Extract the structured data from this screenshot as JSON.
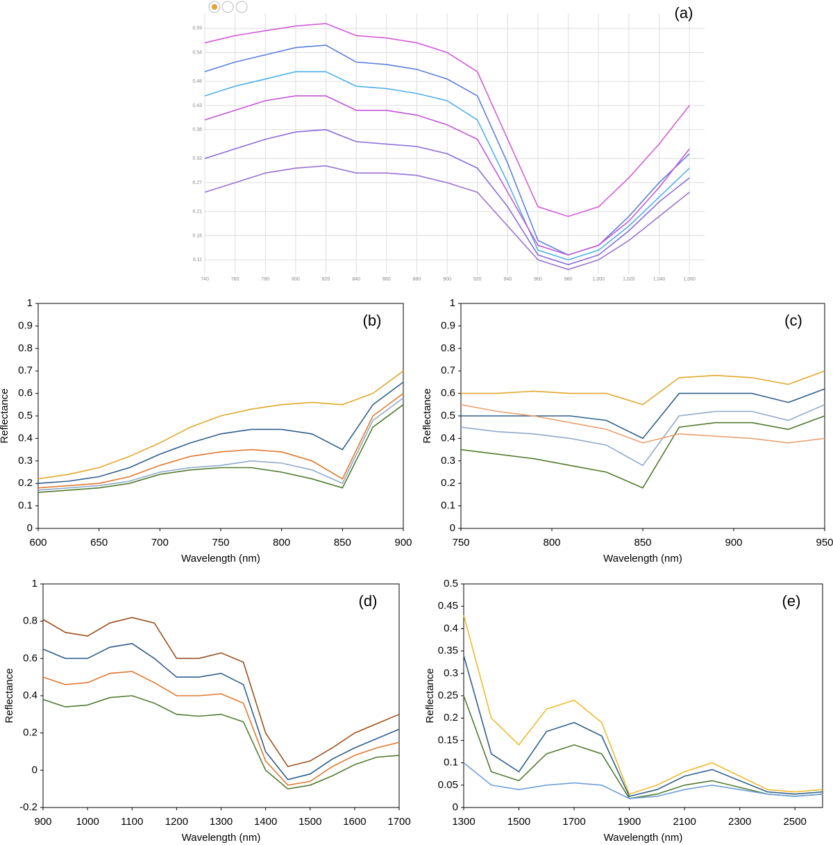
{
  "chart_data": [
    {
      "type": "line",
      "title": "(a)",
      "grid": true,
      "x": [
        740,
        760,
        780,
        800,
        820,
        840,
        860,
        880,
        900,
        920,
        940,
        960,
        980,
        1000,
        1020,
        1040,
        1060
      ],
      "xlim": [
        740,
        1070
      ],
      "ylim": [
        0.08,
        0.62
      ],
      "xticks": [
        740,
        760,
        780,
        800,
        820,
        840,
        860,
        880,
        900,
        920,
        940,
        960,
        980,
        {
          "value": 1000,
          "label": "1,000"
        },
        {
          "value": 1020,
          "label": "1,020"
        },
        {
          "value": 1040,
          "label": "1,040"
        },
        {
          "value": 1060,
          "label": "1,060"
        }
      ],
      "yticks": [
        0.11,
        0.16,
        0.21,
        0.27,
        0.32,
        0.38,
        0.43,
        0.48,
        0.54,
        0.59
      ],
      "series": [
        {
          "color": "#d25ad8",
          "values": [
            0.56,
            0.575,
            0.585,
            0.595,
            0.6,
            0.575,
            0.57,
            0.56,
            0.54,
            0.5,
            0.36,
            0.22,
            0.2,
            0.22,
            0.28,
            0.35,
            0.43
          ]
        },
        {
          "color": "#5b7fdc",
          "values": [
            0.5,
            0.52,
            0.535,
            0.55,
            0.555,
            0.52,
            0.515,
            0.505,
            0.485,
            0.45,
            0.31,
            0.15,
            0.12,
            0.14,
            0.2,
            0.27,
            0.33
          ]
        },
        {
          "color": "#4fb0e8",
          "values": [
            0.45,
            0.47,
            0.485,
            0.5,
            0.5,
            0.47,
            0.465,
            0.455,
            0.44,
            0.4,
            0.27,
            0.13,
            0.11,
            0.13,
            0.18,
            0.24,
            0.3
          ]
        },
        {
          "color": "#c254d6",
          "values": [
            0.4,
            0.42,
            0.44,
            0.45,
            0.45,
            0.42,
            0.42,
            0.41,
            0.39,
            0.36,
            0.25,
            0.14,
            0.12,
            0.14,
            0.19,
            0.26,
            0.34
          ]
        },
        {
          "color": "#8a6ad8",
          "values": [
            0.32,
            0.34,
            0.36,
            0.375,
            0.38,
            0.355,
            0.35,
            0.345,
            0.33,
            0.3,
            0.22,
            0.12,
            0.1,
            0.12,
            0.17,
            0.23,
            0.28
          ]
        },
        {
          "color": "#9a70d0",
          "values": [
            0.25,
            0.27,
            0.29,
            0.3,
            0.305,
            0.29,
            0.29,
            0.285,
            0.27,
            0.25,
            0.18,
            0.11,
            0.09,
            0.11,
            0.15,
            0.2,
            0.25
          ]
        }
      ]
    },
    {
      "type": "line",
      "title": "(b)",
      "grid": false,
      "x_label": "Wavelength (nm)",
      "y_label": "Reflectance",
      "x": [
        600,
        625,
        650,
        675,
        700,
        725,
        750,
        775,
        800,
        825,
        850,
        875,
        900
      ],
      "xlim": [
        600,
        900
      ],
      "ylim": [
        0,
        1
      ],
      "xticks": [
        600,
        650,
        700,
        750,
        800,
        850,
        900
      ],
      "yticks": [
        0,
        0.1,
        0.2,
        0.3,
        0.4,
        0.5,
        0.6,
        0.7,
        0.8,
        0.9,
        1
      ],
      "series": [
        {
          "color": "#e0a72a",
          "values": [
            0.22,
            0.24,
            0.27,
            0.32,
            0.38,
            0.45,
            0.5,
            0.53,
            0.55,
            0.56,
            0.55,
            0.6,
            0.7
          ]
        },
        {
          "color": "#2f5f8a",
          "values": [
            0.2,
            0.21,
            0.23,
            0.27,
            0.33,
            0.38,
            0.42,
            0.44,
            0.44,
            0.42,
            0.35,
            0.55,
            0.65
          ]
        },
        {
          "color": "#e0782e",
          "values": [
            0.18,
            0.19,
            0.2,
            0.23,
            0.28,
            0.32,
            0.34,
            0.35,
            0.34,
            0.3,
            0.22,
            0.5,
            0.6
          ]
        },
        {
          "color": "#4f7a2e",
          "values": [
            0.16,
            0.17,
            0.18,
            0.2,
            0.24,
            0.26,
            0.27,
            0.27,
            0.25,
            0.22,
            0.18,
            0.45,
            0.55
          ]
        },
        {
          "color": "#8fa9c9",
          "values": [
            0.17,
            0.18,
            0.19,
            0.21,
            0.25,
            0.27,
            0.28,
            0.3,
            0.29,
            0.26,
            0.2,
            0.48,
            0.58
          ]
        }
      ]
    },
    {
      "type": "line",
      "title": "(c)",
      "grid": false,
      "x_label": "Wavelength (nm)",
      "y_label": "Reflectance",
      "x": [
        750,
        770,
        790,
        810,
        830,
        850,
        870,
        890,
        910,
        930,
        950
      ],
      "xlim": [
        750,
        950
      ],
      "ylim": [
        0,
        1
      ],
      "xticks": [
        750,
        800,
        850,
        900,
        950
      ],
      "yticks": [
        0,
        0.1,
        0.2,
        0.3,
        0.4,
        0.5,
        0.6,
        0.7,
        0.8,
        0.9,
        1
      ],
      "series": [
        {
          "color": "#e0a72a",
          "values": [
            0.6,
            0.6,
            0.61,
            0.6,
            0.6,
            0.55,
            0.67,
            0.68,
            0.67,
            0.64,
            0.7
          ]
        },
        {
          "color": "#2f5f8a",
          "values": [
            0.5,
            0.5,
            0.5,
            0.5,
            0.48,
            0.4,
            0.6,
            0.6,
            0.6,
            0.56,
            0.62
          ]
        },
        {
          "color": "#8fa9c9",
          "values": [
            0.45,
            0.43,
            0.42,
            0.4,
            0.37,
            0.28,
            0.5,
            0.52,
            0.52,
            0.48,
            0.55
          ]
        },
        {
          "color": "#4f7a2e",
          "values": [
            0.35,
            0.33,
            0.31,
            0.28,
            0.25,
            0.18,
            0.45,
            0.47,
            0.47,
            0.44,
            0.5
          ]
        },
        {
          "color": "#e8a070",
          "values": [
            0.55,
            0.52,
            0.5,
            0.47,
            0.44,
            0.38,
            0.42,
            0.41,
            0.4,
            0.38,
            0.4
          ]
        }
      ]
    },
    {
      "type": "line",
      "title": "(d)",
      "grid": false,
      "x_label": "Wavelength (nm)",
      "y_label": "Reflectance",
      "x": [
        900,
        950,
        1000,
        1050,
        1100,
        1150,
        1200,
        1250,
        1300,
        1350,
        1400,
        1450,
        1500,
        1550,
        1600,
        1650,
        1700
      ],
      "xlim": [
        900,
        1700
      ],
      "ylim": [
        -0.2,
        1
      ],
      "xticks": [
        900,
        1000,
        1100,
        1200,
        1300,
        1400,
        1500,
        1600,
        1700
      ],
      "yticks": [
        -0.2,
        0,
        0.2,
        0.4,
        0.6,
        0.8,
        1
      ],
      "series": [
        {
          "color": "#9a4f1c",
          "values": [
            0.81,
            0.74,
            0.72,
            0.79,
            0.82,
            0.79,
            0.6,
            0.6,
            0.63,
            0.58,
            0.2,
            0.02,
            0.05,
            0.12,
            0.2,
            0.25,
            0.3
          ]
        },
        {
          "color": "#2f5f8a",
          "values": [
            0.65,
            0.6,
            0.6,
            0.66,
            0.68,
            0.6,
            0.5,
            0.5,
            0.52,
            0.46,
            0.1,
            -0.05,
            -0.02,
            0.06,
            0.12,
            0.17,
            0.22
          ]
        },
        {
          "color": "#e0782e",
          "values": [
            0.5,
            0.46,
            0.47,
            0.52,
            0.53,
            0.47,
            0.4,
            0.4,
            0.41,
            0.36,
            0.05,
            -0.08,
            -0.06,
            0.02,
            0.08,
            0.12,
            0.15
          ]
        },
        {
          "color": "#4f7a2e",
          "values": [
            0.38,
            0.34,
            0.35,
            0.39,
            0.4,
            0.36,
            0.3,
            0.29,
            0.3,
            0.26,
            0.0,
            -0.1,
            -0.08,
            -0.03,
            0.03,
            0.07,
            0.08
          ]
        }
      ]
    },
    {
      "type": "line",
      "title": "(e)",
      "grid": false,
      "x_label": "Wavelength (nm)",
      "y_label": "Reflectance",
      "x": [
        1300,
        1400,
        1500,
        1600,
        1700,
        1800,
        1900,
        2000,
        2100,
        2200,
        2300,
        2400,
        2500,
        2600
      ],
      "xlim": [
        1300,
        2600
      ],
      "ylim": [
        0,
        0.5
      ],
      "xticks": [
        1300,
        1500,
        1700,
        1900,
        2100,
        2300,
        2500
      ],
      "yticks": [
        0,
        0.05,
        0.1,
        0.15,
        0.2,
        0.25,
        0.3,
        0.35,
        0.4,
        0.45,
        0.5
      ],
      "series": [
        {
          "color": "#f0b92a",
          "values": [
            0.43,
            0.2,
            0.14,
            0.22,
            0.24,
            0.19,
            0.03,
            0.05,
            0.08,
            0.1,
            0.07,
            0.04,
            0.035,
            0.04
          ]
        },
        {
          "color": "#2f5f8a",
          "values": [
            0.34,
            0.12,
            0.08,
            0.17,
            0.19,
            0.16,
            0.025,
            0.04,
            0.07,
            0.085,
            0.06,
            0.035,
            0.03,
            0.035
          ]
        },
        {
          "color": "#4f7a2e",
          "values": [
            0.25,
            0.08,
            0.06,
            0.12,
            0.14,
            0.12,
            0.02,
            0.03,
            0.05,
            0.06,
            0.045,
            0.03,
            0.025,
            0.03
          ]
        },
        {
          "color": "#6d9fd6",
          "values": [
            0.1,
            0.05,
            0.04,
            0.05,
            0.055,
            0.05,
            0.02,
            0.025,
            0.04,
            0.05,
            0.04,
            0.03,
            0.025,
            0.03
          ]
        }
      ]
    }
  ]
}
